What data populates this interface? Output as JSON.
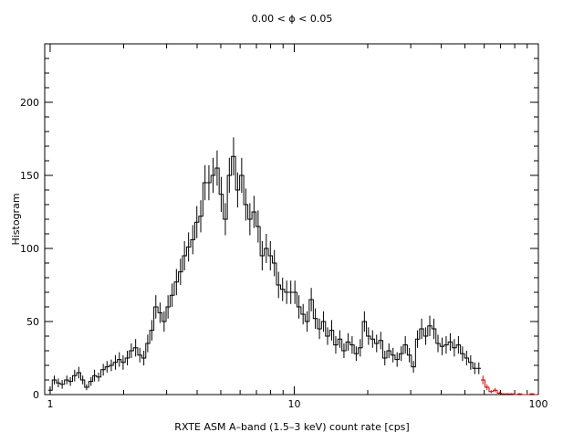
{
  "chart_data": {
    "type": "line",
    "title": "0.00 < ϕ < 0.05",
    "xlabel": "RXTE ASM A–band (1.5–3 keV) count rate [cps]",
    "ylabel": "Histogram",
    "x_scale": "log",
    "xlim": [
      0.95,
      100
    ],
    "ylim": [
      0,
      240
    ],
    "x_ticks": [
      {
        "value": 1,
        "label": "1"
      },
      {
        "value": 10,
        "label": "10"
      },
      {
        "value": 100,
        "label": "100"
      }
    ],
    "y_ticks": [
      {
        "value": 0,
        "label": "0"
      },
      {
        "value": 50,
        "label": "50"
      },
      {
        "value": 100,
        "label": "100"
      },
      {
        "value": 150,
        "label": "150"
      },
      {
        "value": 200,
        "label": "200"
      }
    ],
    "colors": {
      "main": "#000000",
      "tail": "#cc0000"
    },
    "series": [
      {
        "style": "step-with-error-bars",
        "color": "#000000",
        "x": [
          1.0,
          1.04,
          1.08,
          1.12,
          1.17,
          1.21,
          1.26,
          1.31,
          1.36,
          1.41,
          1.47,
          1.52,
          1.58,
          1.65,
          1.71,
          1.78,
          1.85,
          1.92,
          1.99,
          2.07,
          2.15,
          2.24,
          2.33,
          2.42,
          2.51,
          2.61,
          2.71,
          2.82,
          2.93,
          3.04,
          3.16,
          3.29,
          3.42,
          3.55,
          3.69,
          3.84,
          3.99,
          4.14,
          4.31,
          4.47,
          4.65,
          4.83,
          5.02,
          5.22,
          5.42,
          5.64,
          5.86,
          6.09,
          6.33,
          6.58,
          6.84,
          7.11,
          7.39,
          7.68,
          7.98,
          8.29,
          8.62,
          8.96,
          9.31,
          9.68,
          10.06,
          10.45,
          10.87,
          11.29,
          11.74,
          12.2,
          12.68,
          13.18,
          13.69,
          14.23,
          14.79,
          15.37,
          15.98,
          16.61,
          17.26,
          17.94,
          18.64,
          19.38,
          20.14,
          20.93,
          21.75,
          22.61,
          23.5,
          24.42,
          25.38,
          26.38,
          27.42,
          28.5,
          29.62,
          30.78,
          31.99,
          33.25,
          34.56,
          35.91,
          37.33,
          38.8,
          40.32,
          41.9,
          43.55,
          45.26,
          47.04,
          48.89,
          50.81,
          52.81,
          54.88,
          57.04
        ],
        "y": [
          3,
          10,
          8,
          7,
          10,
          9,
          13,
          15,
          10,
          5,
          9,
          13,
          12,
          17,
          19,
          20,
          22,
          24,
          22,
          25,
          30,
          32,
          27,
          25,
          35,
          44,
          60,
          56,
          50,
          60,
          68,
          77,
          84,
          95,
          101,
          106,
          118,
          122,
          145,
          145,
          150,
          155,
          137,
          120,
          150,
          163,
          140,
          150,
          130,
          120,
          125,
          115,
          95,
          100,
          95,
          90,
          75,
          72,
          70,
          70,
          70,
          60,
          55,
          50,
          65,
          52,
          45,
          50,
          40,
          44,
          34,
          38,
          30,
          36,
          34,
          28,
          32,
          50,
          40,
          38,
          35,
          37,
          25,
          30,
          27,
          24,
          28,
          34,
          27,
          19,
          38,
          45,
          40,
          47,
          45,
          35,
          33,
          34,
          36,
          32,
          34,
          28,
          25,
          22,
          18,
          18
        ],
        "err": [
          2,
          3,
          3,
          3,
          3,
          3,
          4,
          4,
          3,
          2,
          3,
          4,
          3,
          4,
          4,
          4,
          5,
          5,
          5,
          5,
          5,
          6,
          5,
          5,
          6,
          7,
          8,
          7,
          7,
          8,
          8,
          9,
          9,
          10,
          10,
          10,
          11,
          11,
          12,
          12,
          12,
          12,
          12,
          11,
          12,
          13,
          12,
          12,
          11,
          11,
          11,
          11,
          10,
          10,
          10,
          9,
          9,
          8,
          8,
          8,
          8,
          8,
          7,
          7,
          8,
          7,
          7,
          7,
          6,
          7,
          6,
          6,
          5,
          6,
          6,
          5,
          6,
          7,
          6,
          6,
          6,
          6,
          5,
          5,
          5,
          5,
          5,
          6,
          5,
          4,
          6,
          7,
          6,
          7,
          7,
          6,
          6,
          6,
          6,
          6,
          6,
          5,
          5,
          5,
          4,
          4
        ]
      },
      {
        "style": "step-with-error-bars",
        "color": "#cc0000",
        "x": [
          59.28,
          61.61,
          64.03,
          66.55,
          69.16,
          71.88,
          74.7,
          77.64,
          80.69,
          83.86,
          87.15,
          90.57,
          94.13,
          97.83
        ],
        "y": [
          10,
          5,
          2,
          3,
          1,
          0.5,
          0.5,
          0.5,
          0,
          0.5,
          0,
          0,
          0.5,
          0
        ],
        "err": [
          3,
          2,
          1,
          1.5,
          1,
          0.5,
          0.5,
          0.5,
          0,
          0.5,
          0,
          0,
          0.5,
          0
        ]
      }
    ]
  }
}
